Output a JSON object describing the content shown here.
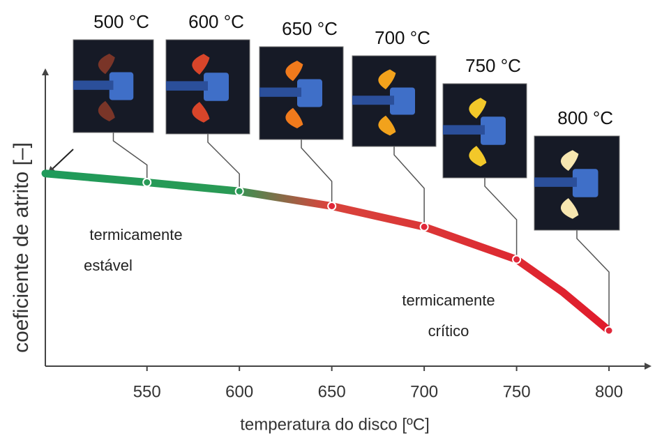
{
  "chart_data": {
    "type": "line",
    "x_label": "temperatura do disco [ºC]",
    "y_label": "coeficiente de atrito [–]",
    "x": [
      495,
      550,
      600,
      650,
      700,
      750,
      775,
      800
    ],
    "values": [
      0.65,
      0.62,
      0.59,
      0.54,
      0.47,
      0.36,
      0.25,
      0.12
    ],
    "xlim": [
      495,
      823
    ],
    "ylim": [
      0,
      1
    ],
    "xticks": [
      550,
      600,
      650,
      700,
      750,
      800
    ],
    "annotations": [
      {
        "lines": [
          "termicamente",
          "estável"
        ]
      },
      {
        "lines": [
          "termicamente",
          "crítico"
        ]
      }
    ],
    "image_labels": [
      "500 °C",
      "600 °C",
      "650 °C",
      "700 °C",
      "750 °C",
      "800 °C"
    ]
  }
}
